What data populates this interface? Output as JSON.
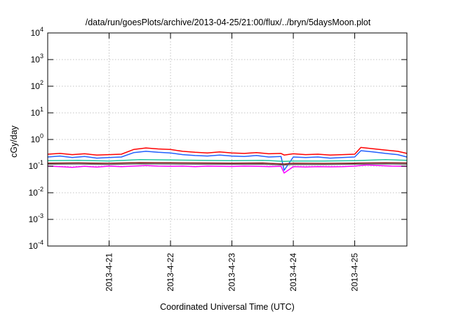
{
  "chart_data": {
    "type": "line",
    "title": "/data/run/goesPlots/archive/2013-04-25/21:00/flux/../bryn/5daysMoon.plot",
    "xlabel": "Coordinated Universal Time (UTC)",
    "ylabel": "cGy/day",
    "yscale": "log",
    "ylim": [
      0.0001,
      10000
    ],
    "xlim": [
      0,
      5.85
    ],
    "grid": true,
    "y_ticks": [
      {
        "value": 0.0001,
        "base": "10",
        "exp": "-4"
      },
      {
        "value": 0.001,
        "base": "10",
        "exp": "-3"
      },
      {
        "value": 0.01,
        "base": "10",
        "exp": "-2"
      },
      {
        "value": 0.1,
        "base": "10",
        "exp": "-1"
      },
      {
        "value": 1,
        "base": "10",
        "exp": "0"
      },
      {
        "value": 10,
        "base": "10",
        "exp": "1"
      },
      {
        "value": 100,
        "base": "10",
        "exp": "2"
      },
      {
        "value": 1000,
        "base": "10",
        "exp": "3"
      },
      {
        "value": 10000,
        "base": "10",
        "exp": "4"
      }
    ],
    "x_ticks": [
      {
        "value": 1,
        "label": "2013-4-21"
      },
      {
        "value": 2,
        "label": "2013-4-22"
      },
      {
        "value": 3,
        "label": "2013-4-23"
      },
      {
        "value": 4,
        "label": "2013-4-24"
      },
      {
        "value": 5,
        "label": "2013-4-25"
      }
    ],
    "series": [
      {
        "color": "#ff0000",
        "x": [
          0,
          0.2,
          0.4,
          0.6,
          0.8,
          1.0,
          1.2,
          1.4,
          1.6,
          1.8,
          2.0,
          2.2,
          2.4,
          2.6,
          2.8,
          3.0,
          3.2,
          3.4,
          3.6,
          3.8,
          3.85,
          4.0,
          4.2,
          4.4,
          4.6,
          4.8,
          5.0,
          5.1,
          5.3,
          5.5,
          5.7,
          5.85
        ],
        "y": [
          0.28,
          0.3,
          0.27,
          0.29,
          0.26,
          0.27,
          0.28,
          0.42,
          0.48,
          0.44,
          0.42,
          0.36,
          0.33,
          0.31,
          0.34,
          0.31,
          0.3,
          0.32,
          0.29,
          0.3,
          0.26,
          0.29,
          0.27,
          0.28,
          0.26,
          0.27,
          0.28,
          0.5,
          0.45,
          0.4,
          0.36,
          0.3
        ]
      },
      {
        "color": "#2060ff",
        "x": [
          0,
          0.2,
          0.4,
          0.6,
          0.8,
          1.0,
          1.2,
          1.4,
          1.6,
          1.8,
          2.0,
          2.2,
          2.4,
          2.6,
          2.8,
          3.0,
          3.2,
          3.4,
          3.6,
          3.8,
          3.85,
          4.0,
          4.2,
          4.4,
          4.6,
          4.8,
          5.0,
          5.1,
          5.3,
          5.5,
          5.7,
          5.85
        ],
        "y": [
          0.22,
          0.24,
          0.21,
          0.23,
          0.2,
          0.21,
          0.22,
          0.32,
          0.36,
          0.33,
          0.31,
          0.27,
          0.25,
          0.24,
          0.26,
          0.24,
          0.23,
          0.25,
          0.22,
          0.23,
          0.07,
          0.22,
          0.21,
          0.22,
          0.2,
          0.21,
          0.22,
          0.38,
          0.34,
          0.3,
          0.27,
          0.22
        ]
      },
      {
        "color": "#20c8a0",
        "x": [
          0,
          0.5,
          1.0,
          1.5,
          2.0,
          2.5,
          3.0,
          3.5,
          3.85,
          4.0,
          4.5,
          5.0,
          5.5,
          5.85
        ],
        "y": [
          0.16,
          0.165,
          0.155,
          0.175,
          0.17,
          0.165,
          0.16,
          0.165,
          0.15,
          0.155,
          0.155,
          0.16,
          0.175,
          0.165
        ]
      },
      {
        "color": "#8b1a1a",
        "x": [
          0,
          0.5,
          1.0,
          1.5,
          2.0,
          2.5,
          3.0,
          3.5,
          3.85,
          4.0,
          4.5,
          5.0,
          5.5,
          5.85
        ],
        "y": [
          0.13,
          0.132,
          0.128,
          0.135,
          0.133,
          0.131,
          0.13,
          0.131,
          0.12,
          0.128,
          0.127,
          0.13,
          0.134,
          0.131
        ]
      },
      {
        "color": "#606060",
        "x": [
          0,
          0.5,
          1.0,
          1.5,
          2.0,
          2.5,
          3.0,
          3.5,
          3.85,
          4.0,
          4.5,
          5.0,
          5.5,
          5.85
        ],
        "y": [
          0.118,
          0.12,
          0.116,
          0.122,
          0.12,
          0.118,
          0.117,
          0.118,
          0.11,
          0.116,
          0.115,
          0.118,
          0.121,
          0.118
        ]
      },
      {
        "color": "#ff00ff",
        "x": [
          0,
          0.2,
          0.4,
          0.6,
          0.8,
          1.0,
          1.2,
          1.4,
          1.6,
          1.8,
          2.0,
          2.2,
          2.4,
          2.6,
          2.8,
          3.0,
          3.2,
          3.4,
          3.6,
          3.8,
          3.85,
          4.0,
          4.2,
          4.4,
          4.6,
          4.8,
          5.0,
          5.2,
          5.4,
          5.6,
          5.85
        ],
        "y": [
          0.1,
          0.095,
          0.09,
          0.098,
          0.092,
          0.1,
          0.095,
          0.1,
          0.105,
          0.1,
          0.098,
          0.1,
          0.096,
          0.1,
          0.098,
          0.097,
          0.1,
          0.099,
          0.096,
          0.098,
          0.055,
          0.095,
          0.093,
          0.096,
          0.094,
          0.095,
          0.1,
          0.11,
          0.105,
          0.1,
          0.098
        ]
      }
    ]
  }
}
